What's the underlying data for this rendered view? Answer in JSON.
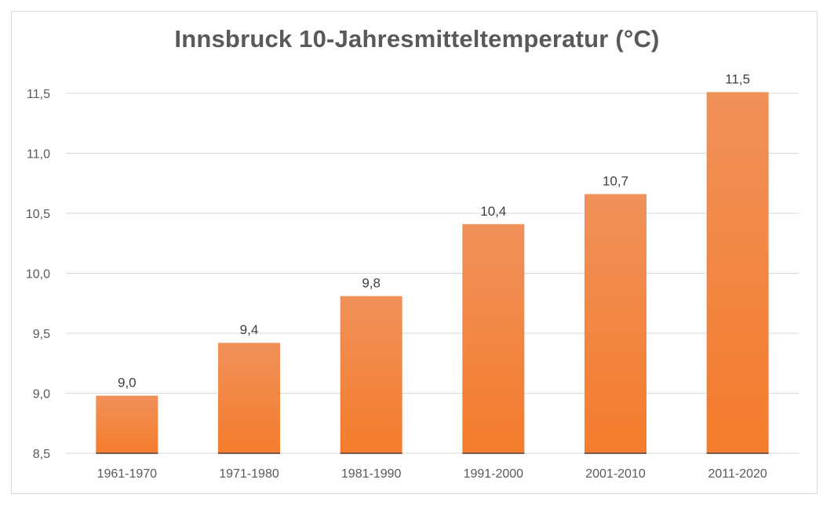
{
  "chart_data": {
    "type": "bar",
    "title": "Innsbruck 10-Jahresmitteltemperatur (°C)",
    "xlabel": "",
    "ylabel": "",
    "categories": [
      "1961-1970",
      "1971-1980",
      "1981-1990",
      "1991-2000",
      "2001-2010",
      "2011-2020"
    ],
    "values": [
      8.98,
      9.42,
      9.81,
      10.41,
      10.66,
      11.51
    ],
    "data_labels": [
      "9,0",
      "9,4",
      "9,8",
      "10,4",
      "10,7",
      "11,5"
    ],
    "ylim": [
      8.5,
      11.5
    ],
    "yticks": [
      8.5,
      9.0,
      9.5,
      10.0,
      10.5,
      11.0,
      11.5
    ],
    "ytick_labels": [
      "8,5",
      "9,0",
      "9,5",
      "10,0",
      "10,5",
      "11,0",
      "11,5"
    ],
    "grid": true,
    "legend": "none",
    "colors": {
      "bar_top": "#f0915a",
      "bar_bottom": "#f47c2c",
      "grid": "#d9d9d9",
      "text": "#595959"
    }
  }
}
